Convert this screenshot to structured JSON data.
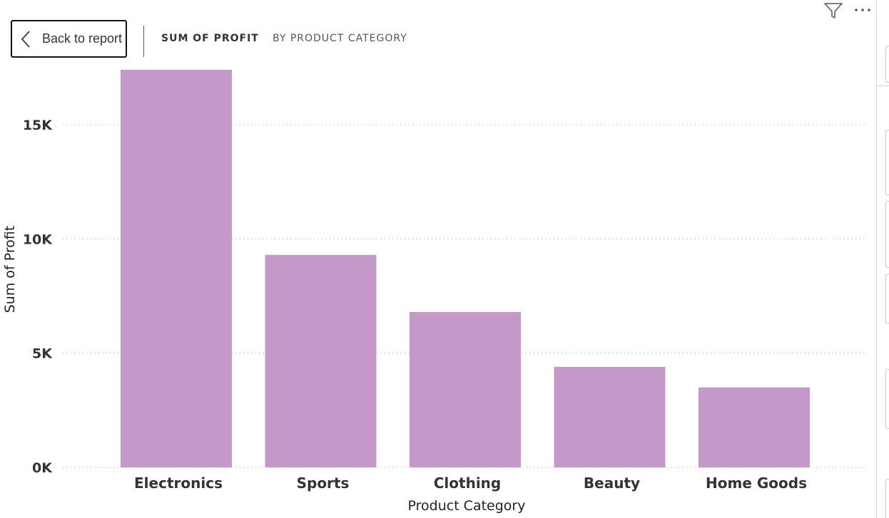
{
  "toolbar": {
    "back_label": "Back to report",
    "title_primary": "SUM OF PROFIT",
    "title_secondary": "BY PRODUCT CATEGORY",
    "icons": [
      "chevron-left-icon",
      "filter-icon",
      "more-options-icon"
    ]
  },
  "colors": {
    "bar": "#C499CA",
    "grid": "#c8c8c8",
    "text": "#333333"
  },
  "chart_data": {
    "type": "bar",
    "categories": [
      "Electronics",
      "Sports",
      "Clothing",
      "Beauty",
      "Home Goods"
    ],
    "values": [
      17400,
      9300,
      6800,
      4400,
      3500
    ],
    "xlabel": "Product Category",
    "ylabel": "Sum of Profit",
    "ylim": [
      0,
      17400
    ],
    "yticks": [
      0,
      5000,
      10000,
      15000
    ],
    "ytick_labels": [
      "0K",
      "5K",
      "10K",
      "15K"
    ],
    "grid": true
  }
}
